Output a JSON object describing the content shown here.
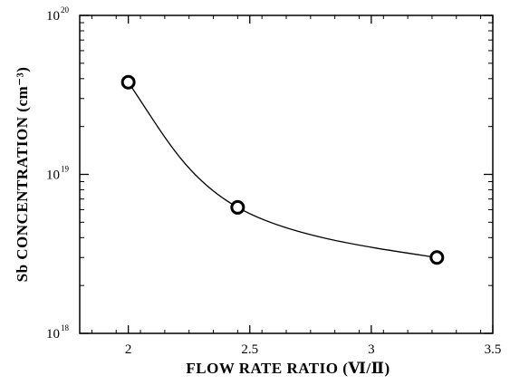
{
  "chart_data": {
    "type": "scatter",
    "title": "",
    "xlabel": "FLOW RATE RATIO (Ⅵ/Ⅱ)",
    "ylabel": "Sb CONCENTRATION (cm⁻³)",
    "xlim": [
      1.8,
      3.5
    ],
    "ylim": [
      1e+18,
      1e+20
    ],
    "yscale": "log",
    "grid": false,
    "x_ticks": [
      {
        "value": 2,
        "label": "2"
      },
      {
        "value": 2.5,
        "label": "2.5"
      },
      {
        "value": 3,
        "label": "3"
      },
      {
        "value": 3.5,
        "label": "3.5"
      }
    ],
    "y_ticks": [
      {
        "value": 1e+18,
        "base": "10",
        "exp": "18"
      },
      {
        "value": 1e+19,
        "base": "10",
        "exp": "19"
      },
      {
        "value": 1e+20,
        "base": "10",
        "exp": "20"
      }
    ],
    "series": [
      {
        "marker": "open-circle",
        "fit_line": "smooth",
        "points": [
          {
            "x": 2.0,
            "y": 3.8e+19
          },
          {
            "x": 2.45,
            "y": 6.2e+18
          },
          {
            "x": 3.27,
            "y": 3e+18
          }
        ]
      }
    ]
  }
}
